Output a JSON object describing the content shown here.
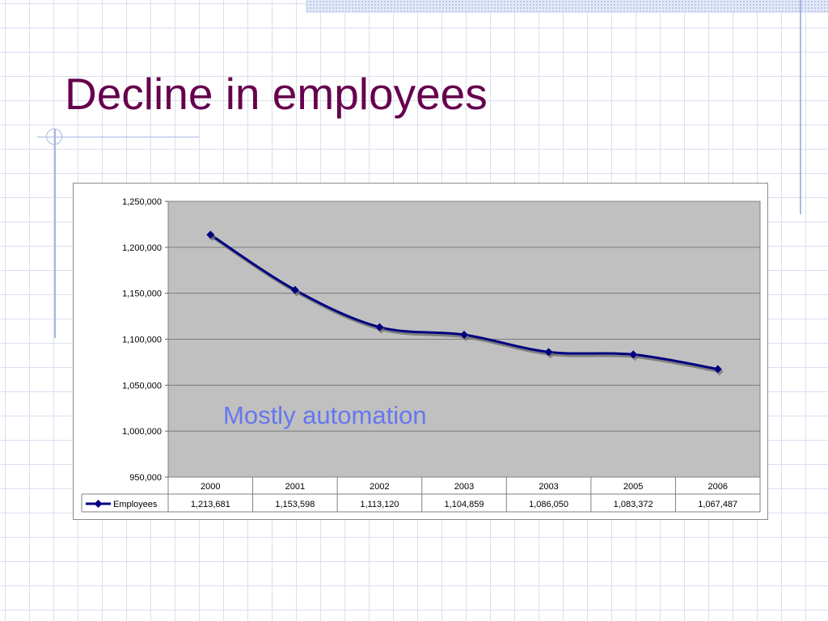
{
  "slide": {
    "title": "Decline in employees"
  },
  "chart_data": {
    "type": "line",
    "categories": [
      "2000",
      "2001",
      "2002",
      "2003",
      "2003",
      "2005",
      "2006"
    ],
    "series": [
      {
        "name": "Employees",
        "values": [
          1213681,
          1153598,
          1113120,
          1104859,
          1086050,
          1083372,
          1067487
        ],
        "value_labels": [
          "1,213,681",
          "1,153,598",
          "1,113,120",
          "1,104,859",
          "1,086,050",
          "1,083,372",
          "1,067,487"
        ],
        "color": "#000080"
      }
    ],
    "ylim": [
      950000,
      1250000
    ],
    "yticks": [
      950000,
      1000000,
      1050000,
      1100000,
      1150000,
      1200000,
      1250000
    ],
    "ytick_labels": [
      "950,000",
      "1,000,000",
      "1,050,000",
      "1,100,000",
      "1,150,000",
      "1,200,000",
      "1,250,000"
    ],
    "grid": true,
    "plot_background": "#c0c0c0",
    "data_table": true,
    "annotation": {
      "text": "Mostly automation",
      "color": "#6677ee"
    }
  }
}
